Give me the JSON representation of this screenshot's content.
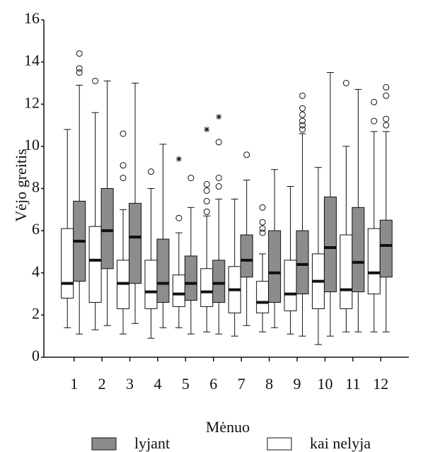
{
  "chart_data": {
    "type": "boxplot",
    "y_label": "Vėjo greitis",
    "x_label": "Mėnuo",
    "categories": [
      "1",
      "2",
      "3",
      "4",
      "5",
      "6",
      "7",
      "8",
      "9",
      "10",
      "11",
      "12"
    ],
    "ylim": [
      0,
      16
    ],
    "yticks": [
      0,
      2,
      4,
      6,
      8,
      10,
      12,
      14,
      16
    ],
    "series": [
      {
        "name": "kai nelyja",
        "color": "#ffffff",
        "whisker_low": [
          1.4,
          1.3,
          1.1,
          0.9,
          1.4,
          1.2,
          1.0,
          1.2,
          1.1,
          0.6,
          1.2,
          1.2
        ],
        "q1": [
          2.8,
          2.6,
          2.3,
          2.3,
          2.4,
          2.4,
          2.1,
          2.1,
          2.2,
          2.3,
          2.3,
          3.0
        ],
        "median": [
          3.5,
          4.6,
          3.5,
          3.1,
          3.0,
          3.1,
          3.2,
          2.6,
          3.0,
          3.6,
          3.2,
          4.0
        ],
        "q3": [
          6.1,
          6.2,
          4.6,
          4.6,
          3.9,
          4.2,
          4.3,
          3.6,
          4.6,
          4.9,
          5.8,
          6.1
        ],
        "whisker_high": [
          10.8,
          11.6,
          7.0,
          8.0,
          5.9,
          6.7,
          7.5,
          4.9,
          8.1,
          9.0,
          10.0,
          10.7
        ],
        "outliers": [
          [],
          [
            13.1
          ],
          [
            10.6,
            9.1,
            8.5
          ],
          [
            8.8
          ],
          [
            6.6
          ],
          [
            8.2,
            7.9,
            7.4,
            6.9
          ],
          [],
          [
            7.1,
            6.4,
            6.1,
            5.9
          ],
          [],
          [],
          [
            13.0
          ],
          [
            12.1,
            11.2
          ]
        ],
        "extremes": [
          [],
          [],
          [],
          [],
          [
            9.4
          ],
          [
            10.8
          ],
          [],
          [],
          [],
          [],
          [],
          []
        ]
      },
      {
        "name": "lyjant",
        "color": "#8c8c8c",
        "whisker_low": [
          1.1,
          1.5,
          1.6,
          1.4,
          1.1,
          1.1,
          1.5,
          1.4,
          1.0,
          1.0,
          1.2,
          1.2
        ],
        "q1": [
          3.6,
          4.2,
          3.5,
          2.6,
          2.7,
          2.6,
          3.8,
          2.6,
          3.0,
          3.1,
          3.1,
          3.8
        ],
        "median": [
          5.5,
          6.0,
          5.7,
          3.5,
          3.5,
          3.5,
          4.6,
          4.0,
          4.4,
          5.2,
          4.5,
          5.3
        ],
        "q3": [
          7.4,
          8.0,
          7.3,
          5.6,
          4.8,
          4.6,
          5.8,
          6.0,
          6.0,
          7.6,
          7.1,
          6.5
        ],
        "whisker_high": [
          12.9,
          13.1,
          13.0,
          10.1,
          7.1,
          7.5,
          8.4,
          8.9,
          10.6,
          13.5,
          12.7,
          10.7
        ],
        "outliers": [
          [
            14.4,
            13.7,
            13.5
          ],
          [],
          [],
          [],
          [
            8.5
          ],
          [
            10.2,
            8.5,
            8.1
          ],
          [
            9.6
          ],
          [],
          [
            12.4,
            11.8,
            11.5,
            11.2,
            11.0,
            10.8
          ],
          [],
          [],
          [
            12.8,
            12.4,
            11.3,
            11.0
          ]
        ],
        "extremes": [
          [],
          [],
          [],
          [],
          [],
          [
            11.4
          ],
          [],
          [],
          [],
          [],
          [],
          []
        ]
      }
    ]
  }
}
